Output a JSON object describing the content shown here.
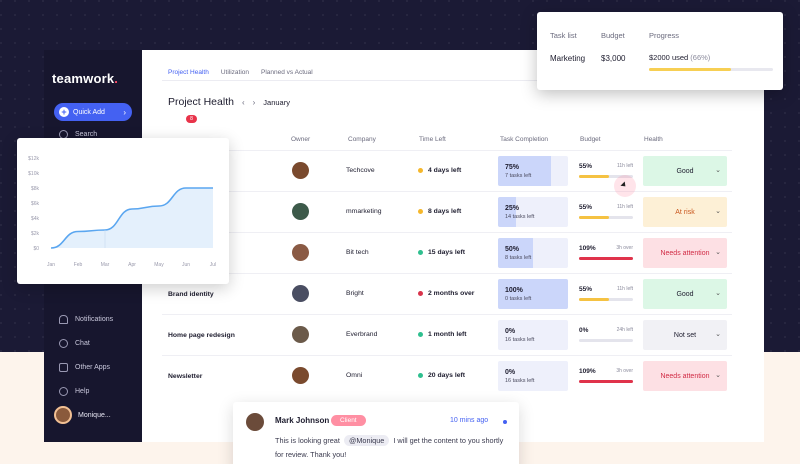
{
  "sidebar": {
    "logo": "teamwork",
    "logo_dot": ".",
    "quick_add": "Quick Add",
    "search": "Search",
    "items": [
      {
        "label": "Notifications",
        "icon": "bell-icon"
      },
      {
        "label": "Chat",
        "icon": "chat-icon"
      },
      {
        "label": "Other Apps",
        "icon": "grid-icon"
      },
      {
        "label": "Help",
        "icon": "help-icon"
      }
    ],
    "user_name": "Monique..."
  },
  "tabs": [
    "Project Health",
    "Utilization",
    "Planned vs Actual"
  ],
  "page": {
    "title": "Project Health",
    "month": "January",
    "prev": "‹",
    "next": "›"
  },
  "columns": [
    "Owner",
    "Company",
    "Time Left",
    "Task Completion",
    "Budget",
    "Health"
  ],
  "rows": [
    {
      "name": "",
      "company": "Techcove",
      "time_left": "4 days left",
      "time_color": "#f5b72b",
      "task_pct": "75%",
      "task_sub": "7 tasks left",
      "task_fill": 0.75,
      "budget_pct": "55%",
      "budget_sub": "11h left",
      "budget_fill": 0.55,
      "budget_color": "#f5c242",
      "health": "Good",
      "health_bg": "#dcf7e6",
      "health_color": "#1d1c2e",
      "avatar": "#7a4a2e"
    },
    {
      "name": "",
      "company": "mmarketing",
      "time_left": "8 days left",
      "time_color": "#f5b72b",
      "task_pct": "25%",
      "task_sub": "14 tasks left",
      "task_fill": 0.25,
      "budget_pct": "55%",
      "budget_sub": "11h left",
      "budget_fill": 0.55,
      "budget_color": "#f5c242",
      "health": "At risk",
      "health_bg": "#fdf0d6",
      "health_color": "#c9571e",
      "avatar": "#3d5a4a"
    },
    {
      "name": "",
      "company": "Bit tech",
      "time_left": "15 days left",
      "time_color": "#2fbf8f",
      "task_pct": "50%",
      "task_sub": "8 tasks left",
      "task_fill": 0.5,
      "budget_pct": "109%",
      "budget_sub": "3h over",
      "budget_fill": 1,
      "budget_color": "#e0334b",
      "health": "Needs attention",
      "health_bg": "#fde0e4",
      "health_color": "#d12b45",
      "avatar": "#8a5a44"
    },
    {
      "name": "Brand identity",
      "company": "Bright",
      "time_left": "2 months over",
      "time_color": "#d8334b",
      "task_pct": "100%",
      "task_sub": "0 tasks left",
      "task_fill": 1,
      "budget_pct": "55%",
      "budget_sub": "11h left",
      "budget_fill": 0.55,
      "budget_color": "#f5c242",
      "health": "Good",
      "health_bg": "#dcf7e6",
      "health_color": "#1d1c2e",
      "avatar": "#4a4e62"
    },
    {
      "name": "Home page redesign",
      "company": "Everbrand",
      "time_left": "1 month left",
      "time_color": "#2fbf8f",
      "task_pct": "0%",
      "task_sub": "16 tasks left",
      "task_fill": 0,
      "budget_pct": "0%",
      "budget_sub": "24h left",
      "budget_fill": 0,
      "budget_color": "#f5c242",
      "health": "Not set",
      "health_bg": "#f1f1f5",
      "health_color": "#1d1c2e",
      "avatar": "#6b5a4a"
    },
    {
      "name": "Newsletter",
      "company": "Omni",
      "time_left": "20 days left",
      "time_color": "#2fbf8f",
      "task_pct": "0%",
      "task_sub": "16 tasks left",
      "task_fill": 0,
      "budget_pct": "109%",
      "budget_sub": "3h over",
      "budget_fill": 1,
      "budget_color": "#e0334b",
      "health": "Needs attention",
      "health_bg": "#fde0e4",
      "health_color": "#d12b45",
      "avatar": "#7a4a2e"
    }
  ],
  "badge": "8",
  "popover": {
    "headers": [
      "Task list",
      "Budget",
      "Progress"
    ],
    "task": "Marketing",
    "budget": "$3,000",
    "progress_used": "$2000 used",
    "progress_pct": "(66%)",
    "progress_fill": 0.66
  },
  "comment": {
    "name": "Mark Johnson",
    "tag": "Client",
    "time": "10 mins ago",
    "text_before": "This is looking great",
    "mention": "@Monique",
    "text_after": "I will get the content to you shortly for review. Thank you!"
  },
  "chart_data": {
    "type": "area",
    "categories": [
      "Jan",
      "Feb",
      "Mar",
      "Apr",
      "May",
      "Jun",
      "Jul"
    ],
    "values": [
      0,
      2.2,
      2.4,
      5.2,
      5.6,
      8,
      8
    ],
    "y_ticks": [
      "$0",
      "$2k",
      "$4k",
      "$6k",
      "$8k",
      "$10k",
      "$12k"
    ],
    "ylim": [
      0,
      12
    ],
    "title": "",
    "xlabel": "",
    "ylabel": "",
    "grid": false,
    "color": "#5aa6f0"
  }
}
